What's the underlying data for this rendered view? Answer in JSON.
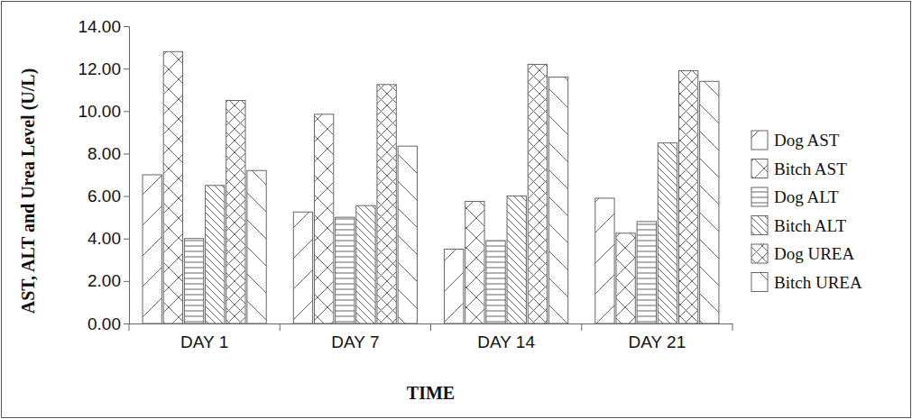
{
  "chart_data": {
    "type": "bar",
    "x_label": "TIME",
    "y_label": "AST,  ALT and Urea Level (U/L)",
    "categories": [
      "DAY 1",
      "DAY 7",
      "DAY 14",
      "DAY 21"
    ],
    "series": [
      {
        "name": "Dog AST",
        "color": "#ffffff",
        "values": [
          7.0,
          5.25,
          3.5,
          5.9
        ]
      },
      {
        "name": "Bitch AST",
        "color": "#ffffff",
        "values": [
          12.8,
          9.85,
          5.75,
          4.25
        ]
      },
      {
        "name": "Dog ALT",
        "color": "#ffffff",
        "values": [
          4.0,
          5.0,
          3.9,
          4.8
        ]
      },
      {
        "name": "Bitch ALT",
        "color": "#ffffff",
        "values": [
          6.5,
          5.55,
          6.0,
          8.5
        ]
      },
      {
        "name": "Dog UREA",
        "color": "#ffffff",
        "values": [
          10.5,
          11.25,
          12.2,
          11.9
        ]
      },
      {
        "name": "Bitch UREA",
        "color": "#ffffff",
        "values": [
          7.2,
          8.35,
          11.6,
          11.4
        ]
      }
    ],
    "ylim": [
      0,
      14
    ],
    "yticks": [
      {
        "value": 0,
        "label": "0.00"
      },
      {
        "value": 2,
        "label": "2.00"
      },
      {
        "value": 4,
        "label": "4.00"
      },
      {
        "value": 6,
        "label": "6.00"
      },
      {
        "value": 8,
        "label": "8.00"
      },
      {
        "value": 10,
        "label": "10.00"
      },
      {
        "value": 12,
        "label": "12.00"
      },
      {
        "value": 14,
        "label": "14.00"
      }
    ],
    "grid": false,
    "legend": "right"
  }
}
